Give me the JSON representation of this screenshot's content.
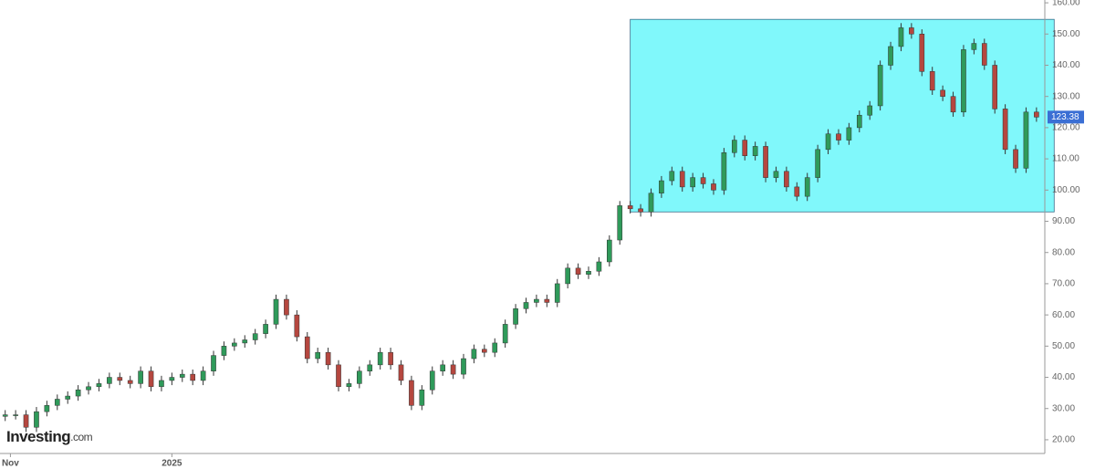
{
  "chart_data": {
    "type": "candlestick",
    "logo": {
      "brand": "Investing",
      "suffix": ".com"
    },
    "open": [
      27.5,
      28,
      28,
      24,
      29,
      31,
      33,
      34,
      36,
      37,
      38,
      40,
      39,
      38,
      42,
      37,
      39,
      40,
      41,
      39,
      42,
      47,
      50,
      51,
      52,
      54,
      57,
      65,
      60,
      53,
      46,
      48,
      44,
      37,
      38,
      42,
      44,
      48,
      44,
      39,
      31,
      36,
      42,
      44,
      41,
      46,
      49,
      48,
      51,
      57,
      62,
      64,
      65,
      64,
      70,
      75,
      73,
      74,
      77,
      84,
      95,
      94,
      93,
      99,
      103,
      106,
      101,
      104,
      102,
      100,
      112,
      116,
      111,
      114,
      104,
      106,
      101,
      98,
      104,
      113,
      118,
      116,
      120,
      124,
      127,
      140,
      146,
      152,
      150,
      138,
      132,
      130,
      125,
      145,
      147,
      140,
      126,
      113,
      107,
      125
    ],
    "high": [
      29.5,
      29.5,
      29.5,
      30.5,
      32.5,
      34.5,
      35.5,
      37.5,
      38.5,
      39.5,
      41.5,
      41.5,
      40.5,
      43.5,
      43.5,
      40.5,
      41.5,
      42.5,
      42.5,
      43.5,
      48.5,
      51.5,
      52.5,
      53.5,
      55.5,
      58.5,
      66.5,
      66.5,
      61.5,
      54.5,
      49.5,
      49.5,
      45.5,
      39.5,
      43.5,
      45.5,
      49.5,
      49.5,
      45.5,
      40.5,
      37.5,
      43.5,
      45.5,
      45.5,
      47.5,
      50.5,
      50.5,
      52.5,
      58.5,
      63.5,
      65.5,
      66.5,
      66.5,
      71.5,
      76.5,
      76.5,
      75.5,
      78.5,
      85.5,
      96.5,
      96.5,
      95.5,
      100.5,
      104.5,
      107.5,
      107.5,
      105.5,
      105.5,
      103.5,
      113.5,
      117.5,
      117.5,
      115.5,
      115.5,
      107.5,
      107.5,
      102.5,
      105.5,
      114.5,
      119.5,
      119.5,
      121.5,
      125.5,
      128.5,
      141.5,
      147.5,
      153.5,
      153.5,
      151.5,
      139.5,
      133.5,
      131.5,
      146.5,
      148.5,
      148.5,
      141.5,
      127.5,
      114.5,
      126.5,
      126.5
    ],
    "low": [
      26,
      26.5,
      22.5,
      22.5,
      27.5,
      29.5,
      31.5,
      32.5,
      34.5,
      35.5,
      36.5,
      37.5,
      36.5,
      36.5,
      35.5,
      35.5,
      37.5,
      38.5,
      37.5,
      37.5,
      40.5,
      45.5,
      48.5,
      49.5,
      50.5,
      52.5,
      55.5,
      58.5,
      51.5,
      44.5,
      44.5,
      42.5,
      35.5,
      35.5,
      36.5,
      40.5,
      42.5,
      42.5,
      37.5,
      29.5,
      29.5,
      34.5,
      40.5,
      39.5,
      39.5,
      44.5,
      46.5,
      46.5,
      49.5,
      55.5,
      60.5,
      62.5,
      62.5,
      62.5,
      68.5,
      71.5,
      71.5,
      72.5,
      75.5,
      82.5,
      92.5,
      91.5,
      91.5,
      97.5,
      101.5,
      99.5,
      99.5,
      100.5,
      98.5,
      98.5,
      110.5,
      109.5,
      109.5,
      102.5,
      102.5,
      99.5,
      96.5,
      96.5,
      102.5,
      111.5,
      114.5,
      114.5,
      118.5,
      122.5,
      125.5,
      138.5,
      144.5,
      148.5,
      136.5,
      130.5,
      128.5,
      123.5,
      123.5,
      143.5,
      138.5,
      124.5,
      111.5,
      105.5,
      105.5,
      121.88
    ],
    "close": [
      28,
      28,
      24,
      29,
      31,
      33,
      34,
      36,
      37,
      38,
      40,
      39,
      38,
      42,
      37,
      39,
      40,
      41,
      39,
      42,
      47,
      50,
      51,
      52,
      54,
      57,
      65,
      60,
      53,
      46,
      48,
      44,
      37,
      38,
      42,
      44,
      48,
      44,
      39,
      31,
      36,
      42,
      44,
      41,
      46,
      49,
      48,
      51,
      57,
      62,
      64,
      65,
      64,
      70,
      75,
      73,
      74,
      77,
      84,
      95,
      94,
      93,
      99,
      103,
      106,
      101,
      104,
      102,
      100,
      112,
      116,
      111,
      114,
      104,
      106,
      101,
      98,
      104,
      113,
      118,
      116,
      120,
      124,
      127,
      140,
      146,
      152,
      150,
      138,
      132,
      130,
      125,
      145,
      147,
      140,
      126,
      113,
      107,
      125,
      123.38
    ],
    "up_color": "#2f9a5a",
    "down_color": "#b5473f",
    "price_label_color": "#3b6fd4",
    "highlight": {
      "x": [
        60,
        100.7
      ],
      "y": [
        93,
        154.7
      ],
      "color": "#80f8fb"
    },
    "xlim": [
      -0.5,
      99.8
    ],
    "xticks": [
      {
        "value": 0.5,
        "label": "Nov"
      },
      {
        "value": 16,
        "label": "2025"
      }
    ],
    "ylim": [
      15.6,
      160.9
    ],
    "yticks": [
      {
        "value": 20,
        "label": "20.00"
      },
      {
        "value": 30,
        "label": "30.00"
      },
      {
        "value": 40,
        "label": "40.00"
      },
      {
        "value": 50,
        "label": "50.00"
      },
      {
        "value": 60,
        "label": "60.00"
      },
      {
        "value": 70,
        "label": "70.00"
      },
      {
        "value": 80,
        "label": "80.00"
      },
      {
        "value": 90,
        "label": "90.00"
      },
      {
        "value": 100,
        "label": "100.00"
      },
      {
        "value": 110,
        "label": "110.00"
      },
      {
        "value": 120,
        "label": "120.00"
      },
      {
        "value": 130,
        "label": "130.00"
      },
      {
        "value": 140,
        "label": "140.00"
      },
      {
        "value": 150,
        "label": "150.00"
      },
      {
        "value": 160,
        "label": "160.00"
      }
    ]
  }
}
